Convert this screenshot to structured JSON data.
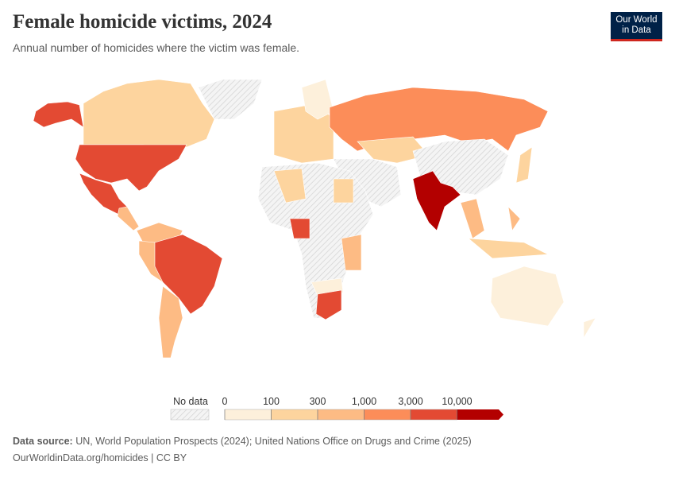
{
  "header": {
    "title": "Female homicide victims, 2024",
    "subtitle": "Annual number of homicides where the victim was female.",
    "logo": [
      "Our World",
      "in Data"
    ]
  },
  "legend": {
    "no_data": "No data",
    "ticks": [
      "0",
      "100",
      "300",
      "1,000",
      "3,000",
      "10,000"
    ],
    "colors": [
      "#fdf0db",
      "#fdd49e",
      "#fdbb84",
      "#fc8d59",
      "#e34a33",
      "#b30000"
    ]
  },
  "footer": {
    "source_label": "Data source:",
    "source": "UN, World Population Prospects (2024); United Nations Office on Drugs and Crime (2025)",
    "url": "OurWorldinData.org/homicides | CC BY"
  }
}
